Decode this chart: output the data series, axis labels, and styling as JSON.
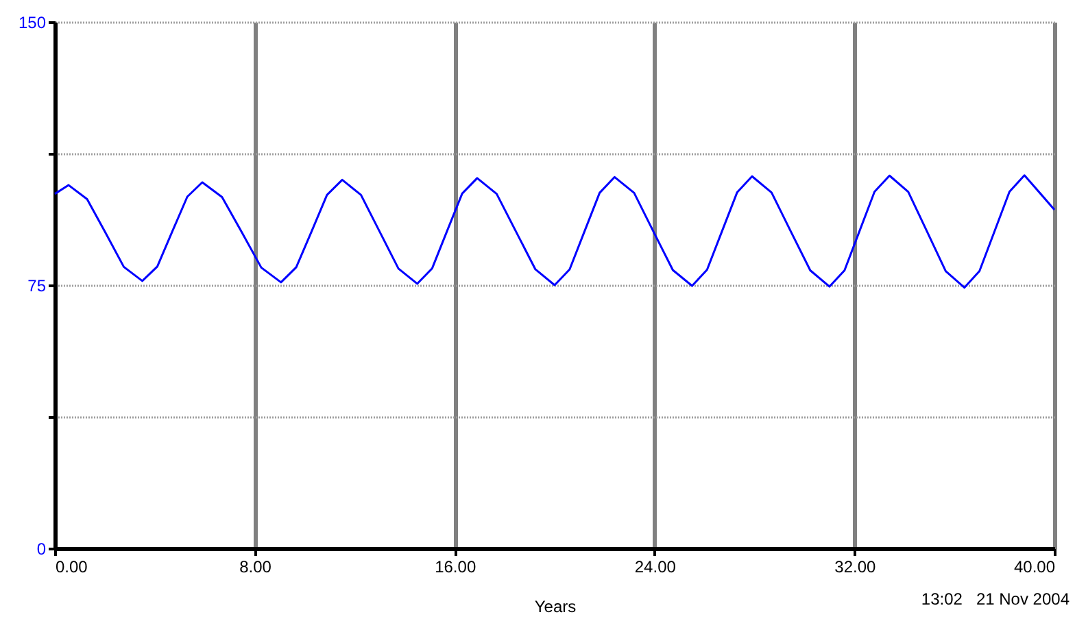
{
  "chart_data": {
    "type": "line",
    "xlabel": "Years",
    "annotations": [
      "13:02   21 Nov 2004"
    ],
    "x": [
      0,
      0.55,
      1.29,
      2.03,
      2.76,
      3.5,
      4.1,
      4.7,
      5.3,
      5.9,
      6.69,
      7.48,
      8.26,
      9.05,
      9.66,
      10.28,
      10.89,
      11.5,
      12.25,
      13.0,
      13.75,
      14.5,
      15.1,
      15.7,
      16.3,
      16.9,
      17.68,
      18.45,
      19.23,
      20.0,
      20.6,
      21.2,
      21.8,
      22.4,
      23.18,
      23.95,
      24.73,
      25.5,
      26.1,
      26.7,
      27.3,
      27.9,
      28.68,
      29.45,
      30.23,
      31.0,
      31.6,
      32.2,
      32.8,
      33.4,
      34.15,
      34.9,
      35.65,
      36.4,
      37.0,
      37.6,
      38.2,
      38.8,
      40.0
    ],
    "series": [
      {
        "color": "#0000ff",
        "values": [
          101,
          103.5,
          99.5,
          89.9,
          80.2,
          76.2,
          80.3,
          90.3,
          100.2,
          104.3,
          100.1,
          90.1,
          80.0,
          75.8,
          80.1,
          90.4,
          100.7,
          105,
          100.7,
          90.2,
          79.7,
          75.4,
          79.8,
          90.5,
          101.1,
          105.5,
          101.0,
          90.3,
          79.5,
          75.0,
          79.5,
          90.4,
          101.3,
          105.8,
          101.3,
          90.3,
          79.3,
          74.8,
          79.4,
          90.4,
          101.4,
          106,
          101.4,
          90.3,
          79.2,
          74.6,
          79.2,
          90.4,
          101.6,
          106.2,
          101.6,
          90.3,
          79.0,
          74.3,
          79.0,
          90.3,
          101.6,
          106.3,
          96.5
        ]
      }
    ],
    "xlim": [
      0,
      40
    ],
    "xticks": [
      {
        "value": 0,
        "label": "0.00"
      },
      {
        "value": 8,
        "label": "8.00"
      },
      {
        "value": 16,
        "label": "16.00"
      },
      {
        "value": 24,
        "label": "24.00"
      },
      {
        "value": 32,
        "label": "32.00"
      },
      {
        "value": 40,
        "label": "40.00"
      }
    ],
    "ylim": [
      0,
      150
    ],
    "yticks": [
      0,
      {
        "value": 37.5,
        "label": null
      },
      75,
      {
        "value": 112.5,
        "label": null
      },
      150
    ],
    "grid": true,
    "marker": "none",
    "line_style": "solid"
  }
}
